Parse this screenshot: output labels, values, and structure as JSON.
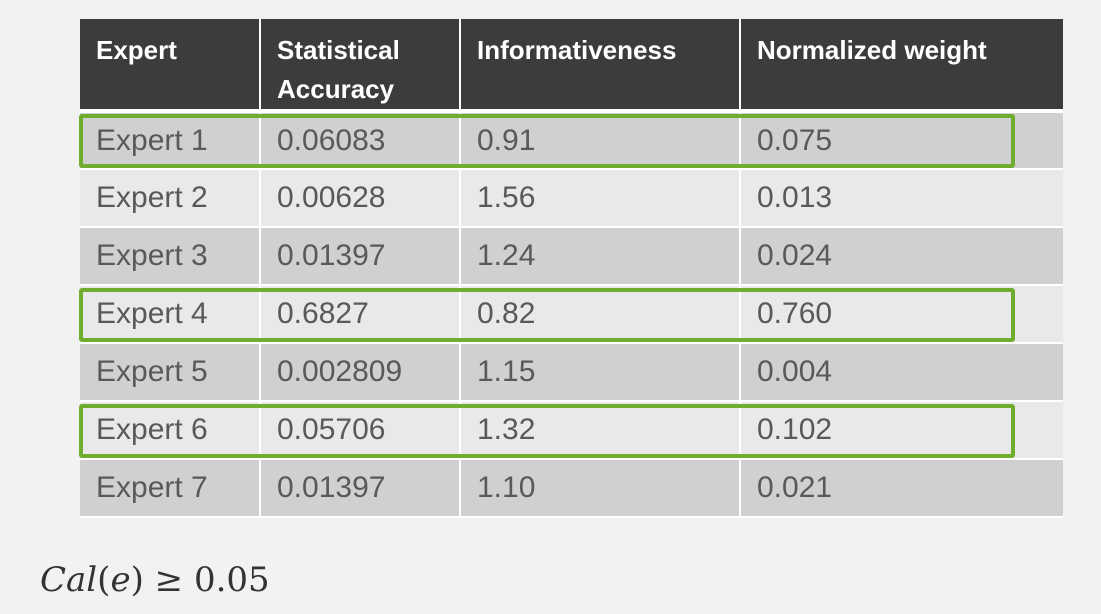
{
  "table": {
    "headers": [
      "Expert",
      "Statistical Accuracy",
      "Informativeness",
      "Normalized weight"
    ],
    "rows": [
      {
        "expert": "Expert 1",
        "accuracy": "0.06083",
        "informativeness": "0.91",
        "weight": "0.075",
        "highlighted": true
      },
      {
        "expert": "Expert 2",
        "accuracy": "0.00628",
        "informativeness": "1.56",
        "weight": "0.013",
        "highlighted": false
      },
      {
        "expert": "Expert 3",
        "accuracy": "0.01397",
        "informativeness": "1.24",
        "weight": "0.024",
        "highlighted": false
      },
      {
        "expert": "Expert 4",
        "accuracy": "0.6827",
        "informativeness": "0.82",
        "weight": "0.760",
        "highlighted": true
      },
      {
        "expert": "Expert 5",
        "accuracy": "0.002809",
        "informativeness": "1.15",
        "weight": "0.004",
        "highlighted": false
      },
      {
        "expert": "Expert 6",
        "accuracy": "0.05706",
        "informativeness": "1.32",
        "weight": "0.102",
        "highlighted": true
      },
      {
        "expert": "Expert 7",
        "accuracy": "0.01397",
        "informativeness": "1.10",
        "weight": "0.021",
        "highlighted": false
      }
    ]
  },
  "formula": {
    "func": "Cal",
    "arg": "e",
    "operator": "≥",
    "threshold": "0.05"
  },
  "colors": {
    "header_bg": "#3c3c3c",
    "row_dark": "#d0d0d0",
    "row_light": "#e9e9e9",
    "highlight": "#70ad2f"
  }
}
